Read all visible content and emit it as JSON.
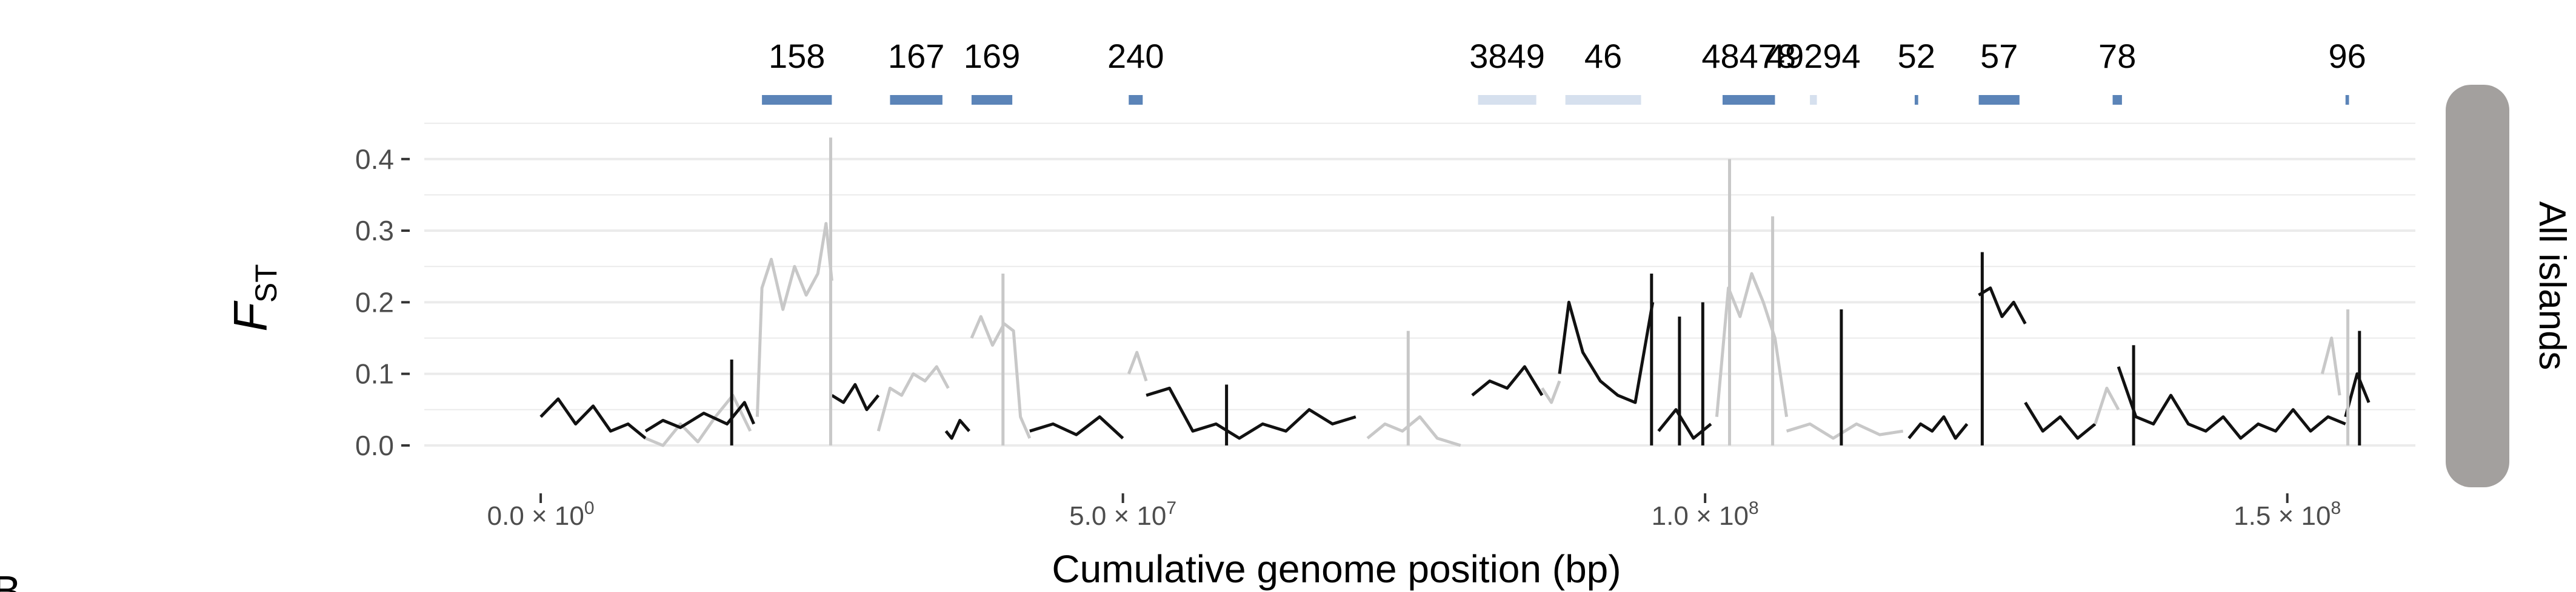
{
  "chart_data": {
    "type": "line",
    "title": "",
    "xlabel": "Cumulative genome position (bp)",
    "ylabel": "F",
    "ylabel_subscript": "ST",
    "panel_label": "All islands",
    "stub_label": "B",
    "xlim": [
      -10000000,
      161000000
    ],
    "ylim": [
      -0.05,
      0.47
    ],
    "x_ticks": [
      0,
      50000000,
      100000000,
      150000000
    ],
    "x_tick_labels": [
      {
        "base": "0.0 × 10",
        "exp": "0"
      },
      {
        "base": "5.0 × 10",
        "exp": "7"
      },
      {
        "base": "1.0 × 10",
        "exp": "8"
      },
      {
        "base": "1.5 × 10",
        "exp": "8"
      }
    ],
    "y_ticks": [
      0,
      0.1,
      0.2,
      0.3,
      0.4
    ],
    "y_tick_labels": [
      "0.0",
      "0.1",
      "0.2",
      "0.3",
      "0.4"
    ],
    "grid": true,
    "colors": {
      "dark": "#111111",
      "light": "#c8c8c8",
      "island": "#5b84b8",
      "island_faint": "#d6e0ee",
      "strip": "#a3a09e",
      "grid": "#ebebeb"
    },
    "islands": [
      {
        "label": "158",
        "start": 19000000,
        "end": 25000000,
        "faint": false,
        "show_label": true
      },
      {
        "label": "167",
        "start": 30000000,
        "end": 34500000,
        "faint": false,
        "show_label": true
      },
      {
        "label": "169",
        "start": 37000000,
        "end": 40500000,
        "faint": false,
        "show_label": true
      },
      {
        "label": "240",
        "start": 50500000,
        "end": 51700000,
        "faint": false,
        "show_label": true
      },
      {
        "label": "3849",
        "start": 80500000,
        "end": 85500000,
        "faint": true,
        "show_label": true
      },
      {
        "label": "46",
        "start": 88000000,
        "end": 94500000,
        "faint": true,
        "show_label": true
      },
      {
        "label": "48478",
        "start": 101500000,
        "end": 106000000,
        "faint": false,
        "show_label": true
      },
      {
        "label": "49294",
        "start": 109000000,
        "end": 109600000,
        "faint": true,
        "show_label": true
      },
      {
        "label": "52",
        "start": 118000000,
        "end": 118300000,
        "faint": false,
        "show_label": true
      },
      {
        "label": "57",
        "start": 123500000,
        "end": 127000000,
        "faint": false,
        "show_label": true
      },
      {
        "label": "78",
        "start": 135000000,
        "end": 135800000,
        "faint": false,
        "show_label": true
      },
      {
        "label": "96",
        "start": 155000000,
        "end": 155300000,
        "faint": false,
        "show_label": true
      }
    ],
    "series": [
      {
        "color": "dark",
        "x": [
          0,
          1500000,
          3000000,
          4500000,
          6000000,
          7500000,
          9000000
        ],
        "y": [
          0.04,
          0.065,
          0.03,
          0.055,
          0.02,
          0.03,
          0.01
        ]
      },
      {
        "color": "light",
        "x": [
          9000000,
          10500000,
          12000000,
          13500000,
          15000000,
          16500000,
          18000000
        ],
        "y": [
          0.01,
          0.0,
          0.03,
          0.005,
          0.04,
          0.07,
          0.02
        ]
      },
      {
        "color": "dark",
        "x": [
          9000000,
          10500000,
          12000000,
          14000000,
          16000000,
          17500000,
          18300000
        ],
        "y": [
          0.02,
          0.035,
          0.025,
          0.045,
          0.03,
          0.06,
          0.03
        ]
      },
      {
        "color": "light",
        "x": [
          18600000,
          19000000,
          19800000,
          20800000,
          21800000,
          22800000,
          23800000,
          24500000,
          25000000
        ],
        "y": [
          0.04,
          0.22,
          0.26,
          0.19,
          0.25,
          0.21,
          0.24,
          0.31,
          0.23
        ]
      },
      {
        "color": "dark",
        "x": [
          25000000,
          26000000,
          27000000,
          28000000,
          29000000
        ],
        "y": [
          0.07,
          0.06,
          0.085,
          0.05,
          0.07
        ]
      },
      {
        "color": "light",
        "x": [
          29000000,
          30000000,
          31000000,
          32000000,
          33000000,
          34000000,
          35000000
        ],
        "y": [
          0.02,
          0.08,
          0.07,
          0.1,
          0.09,
          0.11,
          0.08
        ]
      },
      {
        "color": "dark",
        "x": [
          34800000,
          35300000,
          36000000,
          36800000
        ],
        "y": [
          0.02,
          0.01,
          0.035,
          0.02
        ]
      },
      {
        "color": "light",
        "x": [
          37000000,
          37800000,
          38800000,
          39800000,
          40600000,
          41200000,
          42000000
        ],
        "y": [
          0.15,
          0.18,
          0.14,
          0.17,
          0.16,
          0.04,
          0.01
        ]
      },
      {
        "color": "dark",
        "x": [
          42000000,
          44000000,
          46000000,
          48000000,
          50000000
        ],
        "y": [
          0.02,
          0.03,
          0.015,
          0.04,
          0.01
        ]
      },
      {
        "color": "light",
        "x": [
          50500000,
          51200000,
          52000000
        ],
        "y": [
          0.1,
          0.13,
          0.09
        ]
      },
      {
        "color": "dark",
        "x": [
          52000000,
          54000000,
          56000000,
          58000000,
          60000000,
          62000000,
          64000000,
          66000000,
          68000000,
          70000000
        ],
        "y": [
          0.07,
          0.08,
          0.02,
          0.03,
          0.01,
          0.03,
          0.02,
          0.05,
          0.03,
          0.04
        ]
      },
      {
        "color": "light",
        "x": [
          71000000,
          72500000,
          74000000,
          75500000,
          77000000,
          79000000
        ],
        "y": [
          0.01,
          0.03,
          0.02,
          0.04,
          0.01,
          0.0
        ]
      },
      {
        "color": "dark",
        "x": [
          80000000,
          81500000,
          83000000,
          84500000,
          86000000
        ],
        "y": [
          0.07,
          0.09,
          0.08,
          0.11,
          0.07
        ]
      },
      {
        "color": "light",
        "x": [
          86000000,
          86800000,
          87500000
        ],
        "y": [
          0.08,
          0.06,
          0.09
        ]
      },
      {
        "color": "dark",
        "x": [
          87500000,
          88300000,
          89500000,
          91000000,
          92500000,
          94000000,
          95500000
        ],
        "y": [
          0.1,
          0.2,
          0.13,
          0.09,
          0.07,
          0.06,
          0.2
        ]
      },
      {
        "color": "dark",
        "x": [
          96000000,
          97500000,
          99000000,
          100500000
        ],
        "y": [
          0.02,
          0.05,
          0.01,
          0.03
        ]
      },
      {
        "color": "light",
        "x": [
          101000000,
          102000000,
          103000000,
          104000000,
          105000000,
          106000000,
          107000000
        ],
        "y": [
          0.04,
          0.22,
          0.18,
          0.24,
          0.2,
          0.15,
          0.04
        ]
      },
      {
        "color": "light",
        "x": [
          107000000,
          109000000,
          111000000,
          113000000,
          115000000,
          117000000
        ],
        "y": [
          0.02,
          0.03,
          0.01,
          0.03,
          0.015,
          0.02
        ]
      },
      {
        "color": "dark",
        "x": [
          117500000,
          118500000,
          119500000,
          120500000,
          121500000,
          122500000
        ],
        "y": [
          0.01,
          0.03,
          0.02,
          0.04,
          0.01,
          0.03
        ]
      },
      {
        "color": "dark",
        "x": [
          123500000,
          124500000,
          125500000,
          126500000,
          127500000
        ],
        "y": [
          0.21,
          0.22,
          0.18,
          0.2,
          0.17
        ]
      },
      {
        "color": "dark",
        "x": [
          127500000,
          129000000,
          130500000,
          132000000,
          133500000
        ],
        "y": [
          0.06,
          0.02,
          0.04,
          0.01,
          0.03
        ]
      },
      {
        "color": "light",
        "x": [
          133500000,
          134500000,
          135500000
        ],
        "y": [
          0.03,
          0.08,
          0.05
        ]
      },
      {
        "color": "dark",
        "x": [
          135500000,
          137000000,
          138500000,
          140000000,
          141500000,
          143000000,
          144500000,
          146000000,
          147500000,
          149000000,
          150500000,
          152000000,
          153500000,
          155000000
        ],
        "y": [
          0.11,
          0.04,
          0.03,
          0.07,
          0.03,
          0.02,
          0.04,
          0.01,
          0.03,
          0.02,
          0.05,
          0.02,
          0.04,
          0.03
        ]
      },
      {
        "color": "light",
        "x": [
          153000000,
          153800000,
          154500000
        ],
        "y": [
          0.1,
          0.15,
          0.07
        ]
      },
      {
        "color": "dark",
        "x": [
          155000000,
          156000000,
          157000000
        ],
        "y": [
          0.04,
          0.1,
          0.06
        ]
      }
    ],
    "spikes": [
      {
        "color": "dark",
        "x": 16400000,
        "y": 0.12
      },
      {
        "color": "light",
        "x": 24900000,
        "y": 0.43
      },
      {
        "color": "light",
        "x": 39700000,
        "y": 0.24
      },
      {
        "color": "dark",
        "x": 58900000,
        "y": 0.085
      },
      {
        "color": "light",
        "x": 74500000,
        "y": 0.16
      },
      {
        "color": "dark",
        "x": 95400000,
        "y": 0.24
      },
      {
        "color": "dark",
        "x": 97800000,
        "y": 0.18
      },
      {
        "color": "dark",
        "x": 99800000,
        "y": 0.2
      },
      {
        "color": "light",
        "x": 102100000,
        "y": 0.4
      },
      {
        "color": "light",
        "x": 105800000,
        "y": 0.32
      },
      {
        "color": "dark",
        "x": 111700000,
        "y": 0.19
      },
      {
        "color": "dark",
        "x": 123800000,
        "y": 0.27
      },
      {
        "color": "dark",
        "x": 136800000,
        "y": 0.14
      },
      {
        "color": "light",
        "x": 155200000,
        "y": 0.19
      },
      {
        "color": "dark",
        "x": 156200000,
        "y": 0.16
      }
    ]
  }
}
